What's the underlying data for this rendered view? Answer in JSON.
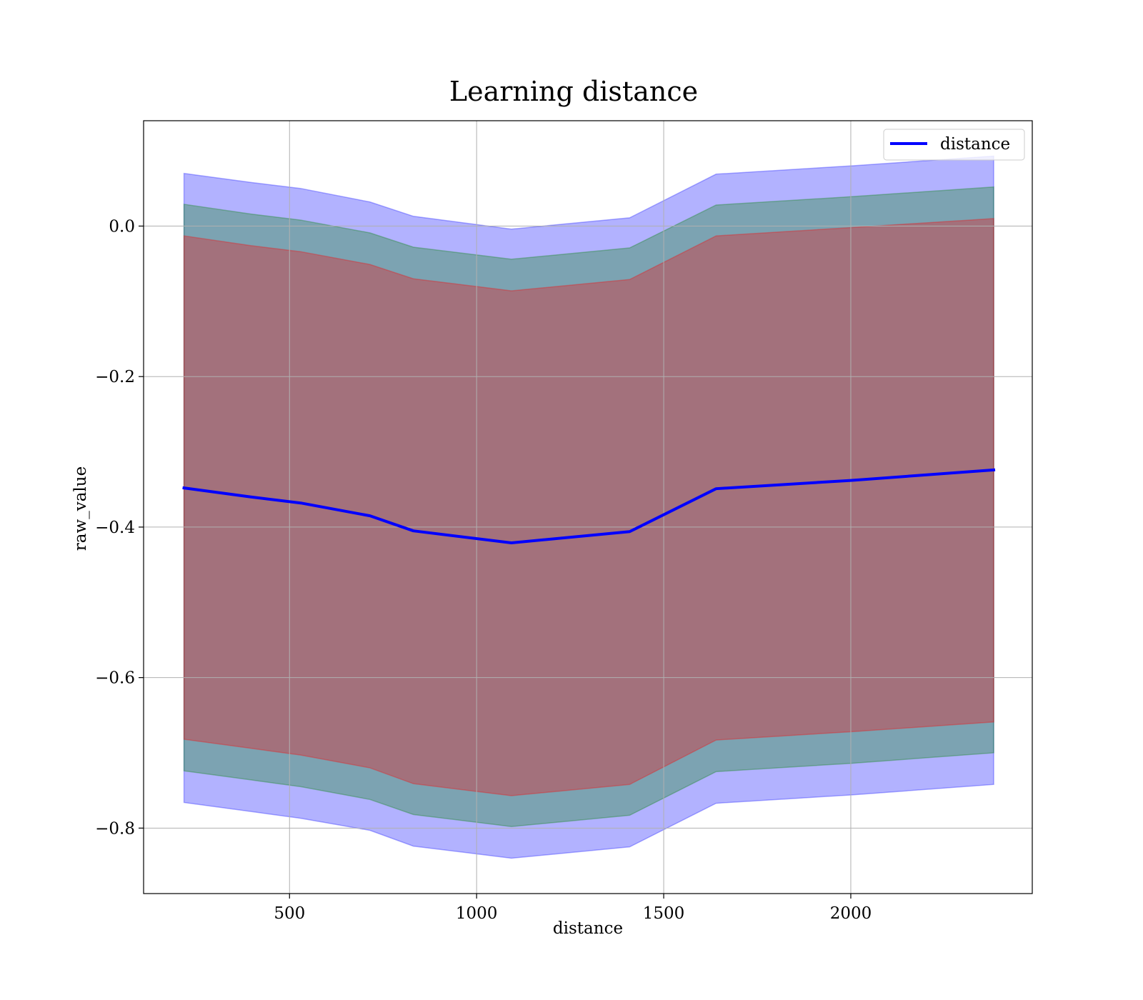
{
  "chart_data": {
    "type": "line",
    "title": "Learning distance",
    "xlabel": "distance",
    "ylabel": "raw_value",
    "xlim": [
      110,
      2485
    ],
    "ylim": [
      -0.887,
      0.14
    ],
    "xticks": [
      500,
      1000,
      1500,
      2000
    ],
    "xtick_labels": [
      "500",
      "1000",
      "1500",
      "2000"
    ],
    "yticks": [
      0.0,
      -0.2,
      -0.4,
      -0.6,
      -0.8
    ],
    "ytick_labels": [
      "0.0",
      "−0.2",
      "−0.4",
      "−0.6",
      "−0.8"
    ],
    "grid": true,
    "legend": {
      "position": "top-right",
      "entries": [
        "distance"
      ]
    },
    "x": [
      218,
      397,
      530,
      715,
      831,
      1093,
      1409,
      1640,
      2000,
      2382
    ],
    "series": [
      {
        "name": "distance",
        "color": "#0000ff",
        "values": [
          -0.348,
          -0.36,
          -0.368,
          -0.385,
          -0.405,
          -0.421,
          -0.406,
          -0.349,
          -0.338,
          -0.324
        ]
      }
    ],
    "bands": [
      {
        "color": "#0000ff",
        "opacity": 0.3,
        "lower": [
          -0.766,
          -0.778,
          -0.787,
          -0.803,
          -0.824,
          -0.84,
          -0.825,
          -0.767,
          -0.756,
          -0.742
        ],
        "upper": [
          0.07,
          0.058,
          0.05,
          0.032,
          0.013,
          -0.004,
          0.011,
          0.069,
          0.08,
          0.093
        ]
      },
      {
        "color": "#008000",
        "opacity": 0.3,
        "lower": [
          -0.724,
          -0.736,
          -0.745,
          -0.762,
          -0.782,
          -0.798,
          -0.783,
          -0.725,
          -0.714,
          -0.7
        ],
        "upper": [
          0.029,
          0.016,
          0.008,
          -0.009,
          -0.028,
          -0.044,
          -0.029,
          0.028,
          0.039,
          0.052
        ]
      },
      {
        "color": "#ff0000",
        "opacity": 0.3,
        "lower": [
          -0.682,
          -0.694,
          -0.703,
          -0.72,
          -0.741,
          -0.757,
          -0.742,
          -0.683,
          -0.672,
          -0.659
        ],
        "upper": [
          -0.013,
          -0.026,
          -0.034,
          -0.051,
          -0.07,
          -0.086,
          -0.071,
          -0.013,
          -0.002,
          0.01
        ]
      }
    ]
  }
}
